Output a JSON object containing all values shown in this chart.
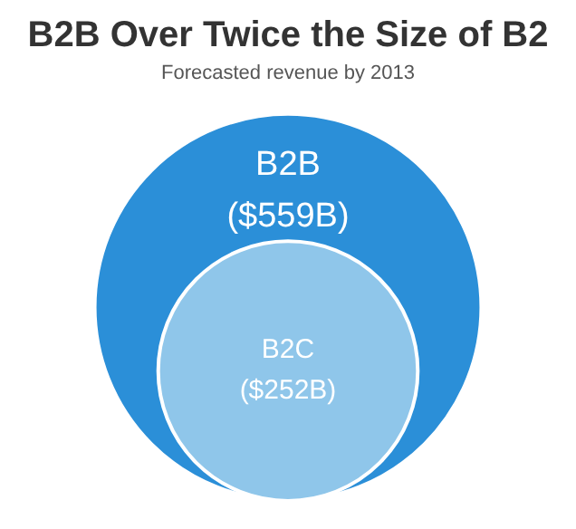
{
  "chart_data": {
    "type": "other",
    "title": "B2B Over Twice the Size of B2",
    "subtitle": "Forecasted revenue by 2013",
    "categories": [
      "B2B",
      "B2C"
    ],
    "values": [
      559,
      252
    ],
    "value_labels": [
      "($559B)",
      "($252B)"
    ],
    "colors": [
      "#2b8fd8",
      "#8fc6ea"
    ],
    "legend": false
  }
}
